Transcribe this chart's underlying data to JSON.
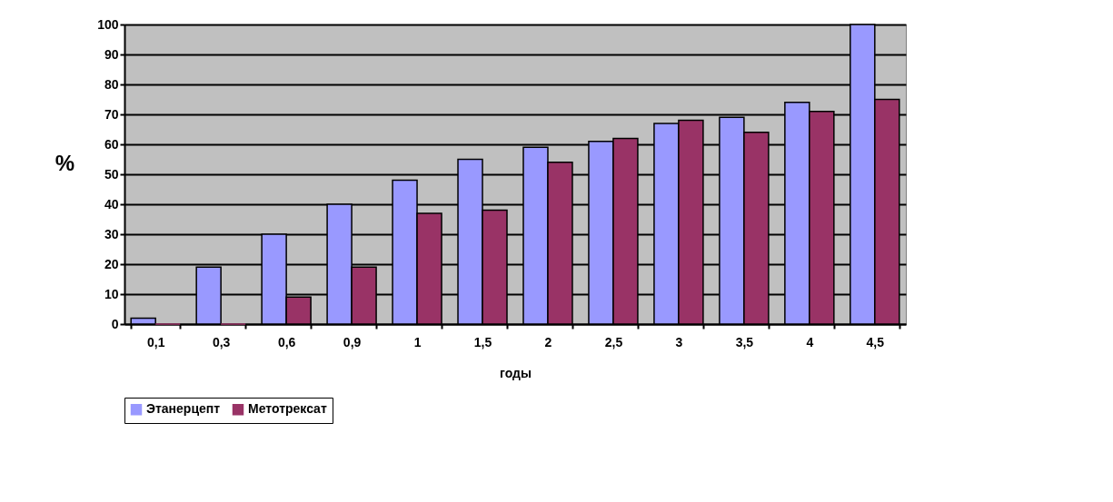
{
  "chart_data": {
    "type": "bar",
    "xlabel": "годы",
    "ylabel": "%",
    "categories": [
      "0,1",
      "0,3",
      "0,6",
      "0,9",
      "1",
      "1,5",
      "2",
      "2,5",
      "3",
      "3,5",
      "4",
      "4,5"
    ],
    "series": [
      {
        "name": "Этанерцепт",
        "color": "#9999ff",
        "values": [
          2,
          19,
          30,
          40,
          48,
          55,
          59,
          61,
          67,
          69,
          74,
          100
        ]
      },
      {
        "name": "Метотрексат",
        "color": "#993366",
        "values": [
          0,
          0,
          9,
          19,
          37,
          38,
          54,
          62,
          68,
          64,
          71,
          75
        ]
      }
    ],
    "ylim": [
      0,
      100
    ],
    "yticks": [
      0,
      10,
      20,
      30,
      40,
      50,
      60,
      70,
      80,
      90,
      100
    ],
    "grid": "y",
    "legend": "bottom"
  }
}
